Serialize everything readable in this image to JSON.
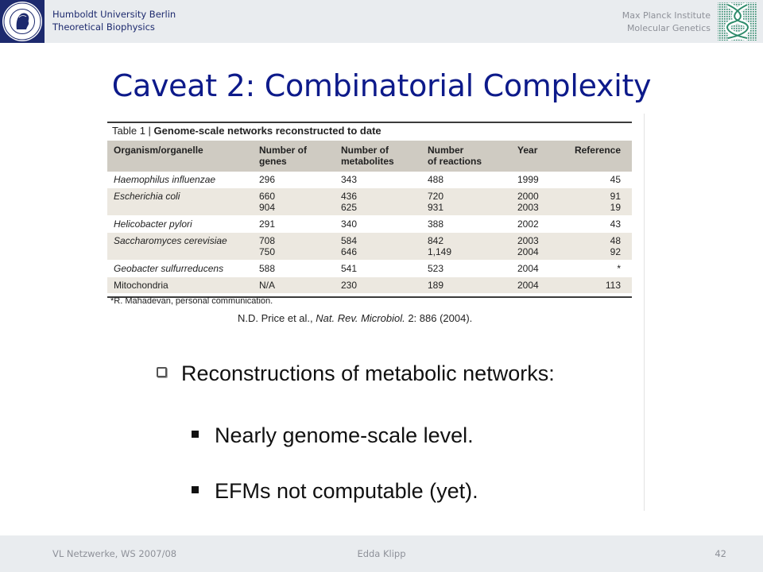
{
  "header": {
    "university_lines": [
      "Humboldt University Berlin",
      "Theoretical Biophysics"
    ],
    "institute_lines": [
      "Max Planck Institute",
      "Molecular Genetics"
    ],
    "seal_text": "HUMBOLDT-UNIVERSITÄT ZU BERLIN",
    "logos": [
      "humboldt-seal-icon",
      "max-planck-logo-icon"
    ],
    "colors": {
      "band": "#e9ecef",
      "university_text": "#1d2a6e",
      "institute_text": "#8e9199"
    }
  },
  "title": "Caveat 2: Combinatorial Complexity",
  "title_color": "#0d1a8a",
  "table": {
    "number": "Table 1 |",
    "caption": "Genome-scale networks reconstructed to date",
    "columns": [
      [
        "Organism/organelle"
      ],
      [
        "Number of",
        "genes"
      ],
      [
        "Number of",
        "metabolites"
      ],
      [
        "Number",
        "of reactions"
      ],
      [
        "Year"
      ],
      [
        "Reference"
      ]
    ],
    "rows": [
      {
        "organism": "Haemophilus influenzae",
        "italic": true,
        "genes": [
          "296"
        ],
        "metabolites": [
          "343"
        ],
        "reactions": [
          "488"
        ],
        "year": [
          "1999"
        ],
        "reference": [
          "45"
        ]
      },
      {
        "organism": "Escherichia coli",
        "italic": true,
        "genes": [
          "660",
          "904"
        ],
        "metabolites": [
          "436",
          "625"
        ],
        "reactions": [
          "720",
          "931"
        ],
        "year": [
          "2000",
          "2003"
        ],
        "reference": [
          "91",
          "19"
        ]
      },
      {
        "organism": "Helicobacter pylori",
        "italic": true,
        "genes": [
          "291"
        ],
        "metabolites": [
          "340"
        ],
        "reactions": [
          "388"
        ],
        "year": [
          "2002"
        ],
        "reference": [
          "43"
        ]
      },
      {
        "organism": "Saccharomyces cerevisiae",
        "italic": true,
        "genes": [
          "708",
          "750"
        ],
        "metabolites": [
          "584",
          "646"
        ],
        "reactions": [
          "842",
          "1,149"
        ],
        "year": [
          "2003",
          "2004"
        ],
        "reference": [
          "48",
          "92"
        ]
      },
      {
        "organism": "Geobacter sulfurreducens",
        "italic": true,
        "genes": [
          "588"
        ],
        "metabolites": [
          "541"
        ],
        "reactions": [
          "523"
        ],
        "year": [
          "2004"
        ],
        "reference": [
          "*"
        ]
      },
      {
        "organism": "Mitochondria",
        "italic": false,
        "genes": [
          "N/A"
        ],
        "metabolites": [
          "230"
        ],
        "reactions": [
          "189"
        ],
        "year": [
          "2004"
        ],
        "reference": [
          "113"
        ]
      }
    ],
    "footnote": "*R. Mahadevan, personal communication."
  },
  "citation": {
    "authors": "N.D. Price et al., ",
    "journal": "Nat. Rev. Microbiol.",
    "rest": " 2: 886 (2004)."
  },
  "bullets": {
    "main": "Reconstructions of metabolic networks:",
    "main_icon": "checkbox-bullet-icon",
    "sub": [
      "Nearly genome-scale level.",
      "EFMs not computable (yet)."
    ],
    "sub_icon": "square-bullet-icon"
  },
  "footer": {
    "left": "VL Netzwerke, WS 2007/08",
    "center": "Edda Klipp",
    "right": "42"
  }
}
